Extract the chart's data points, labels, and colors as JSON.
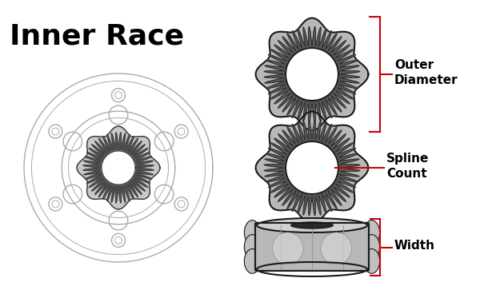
{
  "title": "Inner Race",
  "background_color": "#ffffff",
  "title_fontsize": 26,
  "title_fontweight": "bold",
  "gear_fill": "#b8b8b8",
  "gear_fill_dark": "#909090",
  "gear_edge": "#1a1a1a",
  "spline_fill": "#555555",
  "red_color": "#cc0000",
  "hub_line_color": "#aaaaaa",
  "label_fontsize": 11,
  "labels": [
    "Outer\nDiameter",
    "Spline\nCount",
    "Width"
  ]
}
